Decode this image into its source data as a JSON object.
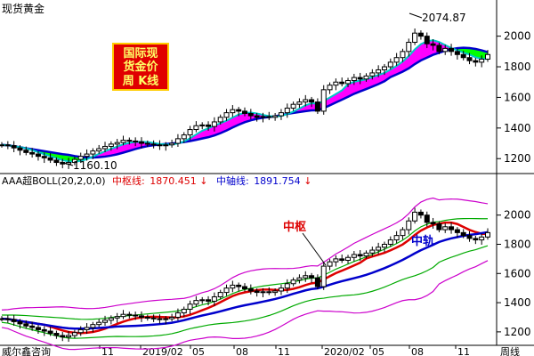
{
  "window_title": "现货黄金",
  "badge": {
    "line1": "国际现",
    "line2": "货金价",
    "line3": "周 K线"
  },
  "annotations": {
    "high": "2074.87",
    "low": "1160.10"
  },
  "boll_header": {
    "name": "AAA超BOLL(20,2,0,0)",
    "mid_label": "中枢线:",
    "mid_value": "1870.451",
    "axis_label": "中轴线:",
    "axis_value": "1891.754",
    "arrow": "↓"
  },
  "lower_labels": {
    "zhongshu": "中枢",
    "zhonggui": "中轨"
  },
  "footer_label": "威尔鑫咨询",
  "period_label": "周线",
  "colors": {
    "bull_candle": "#000000",
    "bear_candle": "#000000",
    "fill_up": "#ff00ff",
    "fill_down": "#00ff00",
    "ma_fast": "#00c8c8",
    "ma_slow": "#0000cc",
    "boll_mid": "#dd0000",
    "boll_inner": "#00aa00",
    "boll_outer": "#cc00cc",
    "label_red": "#dd0000",
    "label_blue": "#0000cc"
  },
  "chart_data": [
    {
      "type": "candlestick",
      "panel": "upper",
      "title": "现货黄金",
      "ylim": [
        1120,
        2120
      ],
      "yticks": [
        1200,
        1400,
        1600,
        1800,
        2000
      ],
      "x_tick_labels": [
        "11",
        "2019/02",
        "05",
        "08",
        "11",
        "2020/02",
        "05",
        "08",
        "11"
      ],
      "close": [
        1290,
        1285,
        1270,
        1255,
        1240,
        1230,
        1215,
        1205,
        1190,
        1175,
        1165,
        1175,
        1195,
        1215,
        1230,
        1250,
        1265,
        1280,
        1295,
        1305,
        1320,
        1315,
        1310,
        1300,
        1295,
        1290,
        1285,
        1290,
        1300,
        1330,
        1355,
        1390,
        1415,
        1420,
        1410,
        1440,
        1470,
        1500,
        1520,
        1510,
        1495,
        1480,
        1470,
        1475,
        1470,
        1480,
        1500,
        1530,
        1555,
        1570,
        1585,
        1570,
        1510,
        1650,
        1680,
        1700,
        1690,
        1710,
        1730,
        1720,
        1740,
        1760,
        1780,
        1800,
        1830,
        1860,
        1900,
        1960,
        2020,
        2000,
        1950,
        1940,
        1900,
        1920,
        1900,
        1880,
        1860,
        1840,
        1830,
        1850,
        1880
      ],
      "high": 2074.87,
      "low": 1160.1
    },
    {
      "type": "line",
      "panel": "lower",
      "title": "AAA超BOLL(20,2,0,0)",
      "ylim": [
        1120,
        2120
      ],
      "yticks": [
        1200,
        1400,
        1600,
        1800,
        2000
      ],
      "series": [
        {
          "name": "中枢线",
          "last": 1870.451
        },
        {
          "name": "中轴线",
          "last": 1891.754
        }
      ]
    }
  ]
}
